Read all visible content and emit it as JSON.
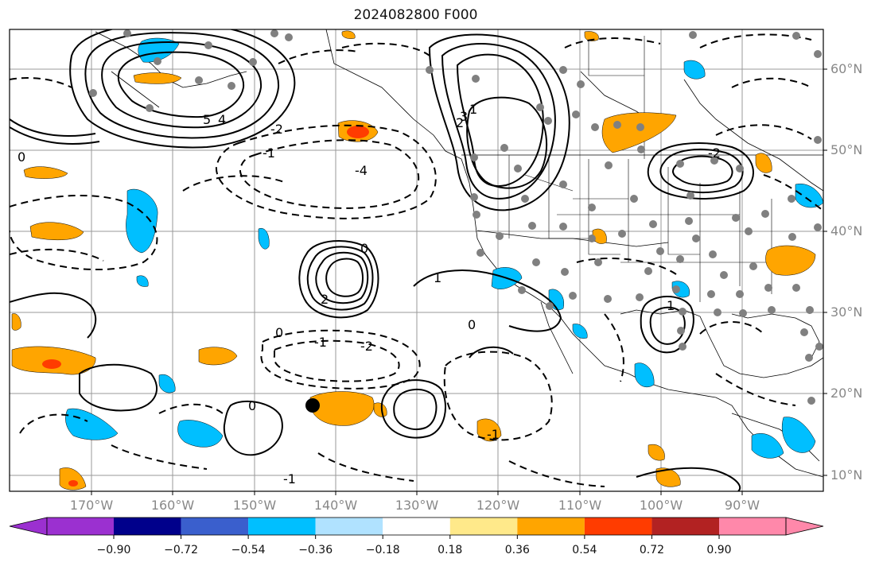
{
  "title": "2024082800 F000",
  "lat_labels": [
    "60°N",
    "50°N",
    "40°N",
    "30°N",
    "20°N",
    "10°N"
  ],
  "lon_labels": [
    "170°W",
    "160°W",
    "150°W",
    "140°W",
    "130°W",
    "120°W",
    "110°W",
    "100°W",
    "90°W"
  ],
  "contour_labels": [
    "5",
    "4",
    "1",
    "2",
    "3",
    "0",
    "-1",
    "-2",
    "-4",
    "2",
    "0",
    "-1",
    "-2",
    "1",
    "1",
    "0",
    "0",
    "0",
    "-1",
    "-2",
    "-1"
  ],
  "colorbar": {
    "tick_labels": [
      "−0.90",
      "−0.72",
      "−0.54",
      "−0.36",
      "−0.18",
      "0.18",
      "0.36",
      "0.54",
      "0.72",
      "0.90"
    ],
    "colors": [
      "#9b30d0",
      "#00008b",
      "#3a5fcd",
      "#00bfff",
      "#b0e2ff",
      "#ffffff",
      "#ffe98a",
      "#ffa500",
      "#ff3c00",
      "#b22222",
      "#ff88aa"
    ]
  },
  "colors": {
    "frame": "#000000",
    "grid": "#999999",
    "station": "#808080",
    "marker": "#000000"
  }
}
